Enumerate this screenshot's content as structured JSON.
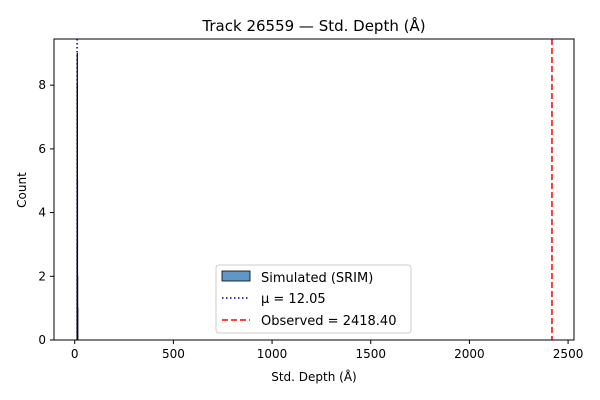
{
  "chart_data": {
    "type": "histogram",
    "title": "Track 26559 — Std. Depth (Å)",
    "xlabel": "Std. Depth (Å)",
    "ylabel": "Count",
    "xlim": [
      -105,
      2530
    ],
    "ylim": [
      0,
      9.45
    ],
    "xticks": [
      0,
      500,
      1000,
      1500,
      2000,
      2500
    ],
    "yticks": [
      0,
      2,
      4,
      6,
      8
    ],
    "grid": false,
    "legend_position": "lower-center",
    "bins": [
      {
        "x0": 10.5,
        "x1": 11.0,
        "count": 1
      },
      {
        "x0": 11.0,
        "x1": 11.5,
        "count": 3
      },
      {
        "x0": 11.5,
        "x1": 12.0,
        "count": 9
      },
      {
        "x0": 12.0,
        "x1": 12.5,
        "count": 8
      },
      {
        "x0": 12.5,
        "x1": 13.0,
        "count": 5
      },
      {
        "x0": 13.0,
        "x1": 13.5,
        "count": 2
      },
      {
        "x0": 13.5,
        "x1": 14.0,
        "count": 1
      }
    ],
    "mean": 12.05,
    "observed": 2418.4,
    "series": [
      {
        "name": "Simulated (SRIM)",
        "kind": "histogram",
        "color": "#5f97c7"
      },
      {
        "name": "μ = 12.05",
        "kind": "vline",
        "value": 12.05,
        "color": "#00008b",
        "style": "dotted"
      },
      {
        "name": "Observed = 2418.40",
        "kind": "vline",
        "value": 2418.4,
        "color": "#ff0000",
        "style": "dashed"
      }
    ]
  }
}
